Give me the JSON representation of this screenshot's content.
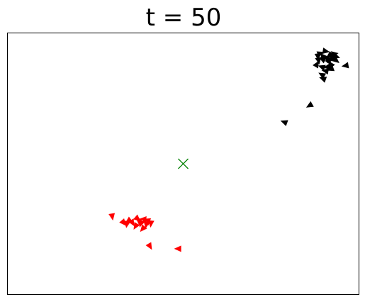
{
  "chart_data": {
    "type": "scatter",
    "title": "t = 50",
    "xlabel": "",
    "ylabel": "",
    "xlim": [
      0,
      1
    ],
    "ylim": [
      0,
      1
    ],
    "grid": false,
    "legend": false,
    "ticks_visible": false,
    "marker": {
      "name": "center-marker",
      "symbol": "x",
      "color": "#008000",
      "x": 0.5,
      "y": 0.5
    },
    "series": [
      {
        "color": "#000000",
        "marker_symbol": "triangle",
        "points": [
          {
            "x": 0.89,
            "y": 0.922,
            "angle": -20
          },
          {
            "x": 0.905,
            "y": 0.93,
            "angle": 10
          },
          {
            "x": 0.92,
            "y": 0.915,
            "angle": 30
          },
          {
            "x": 0.9,
            "y": 0.9,
            "angle": -40
          },
          {
            "x": 0.915,
            "y": 0.89,
            "angle": 60
          },
          {
            "x": 0.925,
            "y": 0.9,
            "angle": 15
          },
          {
            "x": 0.93,
            "y": 0.92,
            "angle": -10
          },
          {
            "x": 0.885,
            "y": 0.895,
            "angle": 80
          },
          {
            "x": 0.895,
            "y": 0.87,
            "angle": 200
          },
          {
            "x": 0.91,
            "y": 0.87,
            "angle": 170
          },
          {
            "x": 0.905,
            "y": 0.855,
            "angle": 190
          },
          {
            "x": 0.895,
            "y": 0.84,
            "angle": 210
          },
          {
            "x": 0.935,
            "y": 0.895,
            "angle": 40
          },
          {
            "x": 0.88,
            "y": 0.88,
            "angle": -60
          },
          {
            "x": 0.92,
            "y": 0.875,
            "angle": 120
          },
          {
            "x": 0.9,
            "y": 0.91,
            "angle": 0
          },
          {
            "x": 0.91,
            "y": 0.9,
            "angle": 90
          },
          {
            "x": 0.885,
            "y": 0.915,
            "angle": -30
          },
          {
            "x": 0.935,
            "y": 0.91,
            "angle": 20
          },
          {
            "x": 0.962,
            "y": 0.875,
            "angle": 170
          },
          {
            "x": 0.898,
            "y": 0.825,
            "angle": 200
          },
          {
            "x": 0.92,
            "y": 0.862,
            "angle": 160
          },
          {
            "x": 0.86,
            "y": 0.723,
            "angle": 150
          },
          {
            "x": 0.788,
            "y": 0.659,
            "angle": 200
          }
        ]
      },
      {
        "color": "#ff0000",
        "marker_symbol": "triangle",
        "points": [
          {
            "x": 0.298,
            "y": 0.299,
            "angle": 80
          },
          {
            "x": 0.34,
            "y": 0.27,
            "angle": 100
          },
          {
            "x": 0.355,
            "y": 0.275,
            "angle": 60
          },
          {
            "x": 0.37,
            "y": 0.29,
            "angle": 40
          },
          {
            "x": 0.375,
            "y": 0.28,
            "angle": 90
          },
          {
            "x": 0.38,
            "y": 0.272,
            "angle": 110
          },
          {
            "x": 0.39,
            "y": 0.285,
            "angle": 70
          },
          {
            "x": 0.395,
            "y": 0.268,
            "angle": 100
          },
          {
            "x": 0.4,
            "y": 0.28,
            "angle": 85
          },
          {
            "x": 0.365,
            "y": 0.262,
            "angle": 120
          },
          {
            "x": 0.348,
            "y": 0.282,
            "angle": 30
          },
          {
            "x": 0.385,
            "y": 0.252,
            "angle": 130
          },
          {
            "x": 0.408,
            "y": 0.272,
            "angle": 95
          },
          {
            "x": 0.33,
            "y": 0.275,
            "angle": 50
          },
          {
            "x": 0.405,
            "y": 0.185,
            "angle": 60
          },
          {
            "x": 0.486,
            "y": 0.175,
            "angle": 180
          }
        ]
      }
    ]
  }
}
